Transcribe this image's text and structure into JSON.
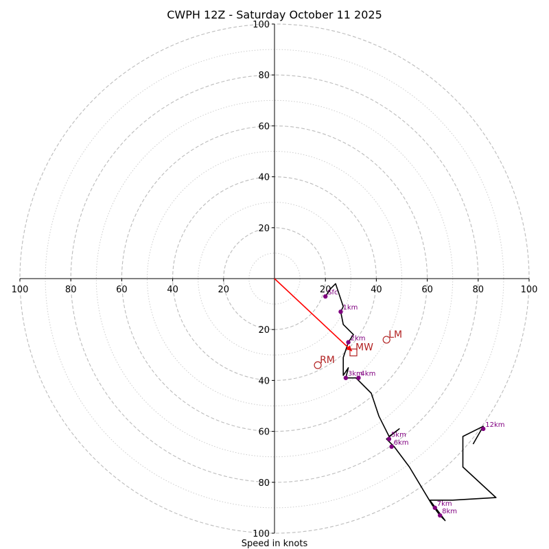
{
  "chart_data": {
    "type": "hodograph",
    "title": "CWPH 12Z - Saturday October 11 2025",
    "xlabel": "Speed in knots",
    "range": [
      -100,
      100
    ],
    "rings_major": [
      20,
      40,
      60,
      80,
      100
    ],
    "rings_minor": [
      10,
      30,
      50,
      70,
      90
    ],
    "ticks": {
      "top": [
        "20",
        "40",
        "60",
        "80",
        "100"
      ],
      "bottom": [
        "20",
        "40",
        "60",
        "80",
        "100"
      ],
      "left": [
        "100",
        "80",
        "60",
        "40",
        "20"
      ],
      "right": [
        "20",
        "40",
        "60",
        "80",
        "100"
      ]
    },
    "trace": [
      [
        20,
        -7
      ],
      [
        22,
        -4
      ],
      [
        24,
        -2
      ],
      [
        25,
        -5
      ],
      [
        27,
        -11
      ],
      [
        26,
        -13
      ],
      [
        27,
        -18
      ],
      [
        31,
        -22
      ],
      [
        29,
        -25
      ],
      [
        28,
        -28
      ],
      [
        27,
        -31
      ],
      [
        27,
        -38
      ],
      [
        29,
        -35
      ],
      [
        28,
        -39
      ],
      [
        32,
        -39
      ],
      [
        38,
        -45
      ],
      [
        41,
        -54
      ],
      [
        45,
        -62
      ],
      [
        49,
        -59
      ],
      [
        44,
        -63
      ],
      [
        47,
        -66
      ],
      [
        53,
        -74
      ],
      [
        62,
        -89
      ],
      [
        65,
        -93
      ],
      [
        67,
        -95
      ],
      [
        61,
        -87
      ],
      [
        70,
        -87
      ],
      [
        87,
        -86
      ],
      [
        74,
        -74
      ],
      [
        74,
        -62
      ],
      [
        82,
        -58
      ],
      [
        78,
        -65
      ]
    ],
    "height_markers": [
      {
        "label": "Sfc",
        "u": 20,
        "v": -7
      },
      {
        "label": "1km",
        "u": 26,
        "v": -13
      },
      {
        "label": "2km",
        "u": 29,
        "v": -25
      },
      {
        "label": "3km",
        "u": 28,
        "v": -39
      },
      {
        "label": "4km",
        "u": 33,
        "v": -39
      },
      {
        "label": "5km",
        "u": 45,
        "v": -63
      },
      {
        "label": "6km",
        "u": 46,
        "v": -66
      },
      {
        "label": "7km",
        "u": 63,
        "v": -90
      },
      {
        "label": "8km",
        "u": 65,
        "v": -93
      },
      {
        "label": "12km",
        "u": 82,
        "v": -59
      }
    ],
    "mean_wind": {
      "label": "MW",
      "u": 31,
      "v": -29
    },
    "left_mover": {
      "label": "LM",
      "u": 44,
      "v": -24
    },
    "right_mover": {
      "label": "RM",
      "u": 17,
      "v": -34
    },
    "colors": {
      "trace": "#000000",
      "markers": "#800080",
      "storm_motion": "#b22222",
      "arrow": "#ff0000",
      "grid": "#bbbbbb"
    }
  }
}
